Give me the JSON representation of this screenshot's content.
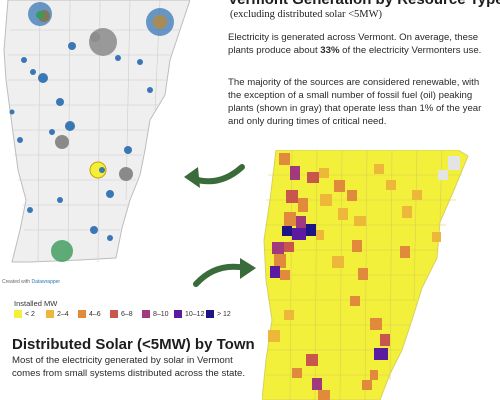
{
  "top_section": {
    "title": "Vermont Generation by Resource Type",
    "subtitle": "(excluding distributed solar <5MW)",
    "paragraph1_pre": "Electricity is generated across Vermont. On average, these plants produce about ",
    "paragraph1_bold": "33%",
    "paragraph1_post": " of the electricity Vermonters use.",
    "paragraph2": "The majority of the sources are considered renewable, with the exception of a small number of fossil fuel (oil) peaking plants (shown in gray) that operate less than 1% of the year and only during times of critical need."
  },
  "credit": {
    "prefix": "Created with ",
    "brand": "Datawrapper"
  },
  "legend": {
    "title": "Installed MW",
    "items": [
      {
        "label": "< 2",
        "color": "#f2f03a"
      },
      {
        "label": "2–4",
        "color": "#edb83a"
      },
      {
        "label": "4–6",
        "color": "#e28a3b"
      },
      {
        "label": "6–8",
        "color": "#c9564d"
      },
      {
        "label": "8–10",
        "color": "#a13a7c"
      },
      {
        "label": "10–12",
        "color": "#5b1aa0"
      },
      {
        "label": "> 12",
        "color": "#1d1585"
      }
    ]
  },
  "bottom_section": {
    "title": "Distributed Solar (<5MW) by Town",
    "paragraph": "Most of the electricity generated by solar in Vermont comes from small systems distributed across the state."
  },
  "colors": {
    "arrow": "#3a6b3a",
    "town_border": "#c9c9c9",
    "top_map_fill": "#efefef",
    "hydro": "#3a78b5",
    "wind": "#8a8a8a",
    "biomass": "#3a9a5a",
    "solar": "#f2f03a"
  }
}
